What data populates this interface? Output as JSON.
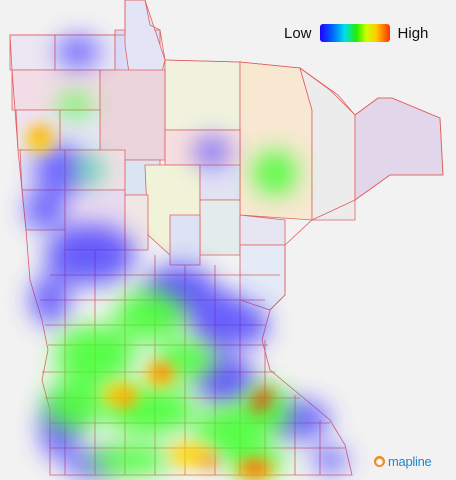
{
  "legend": {
    "low_label": "Low",
    "high_label": "High",
    "gradient_colors": [
      "#1f00ff",
      "#0066ff",
      "#00ddee",
      "#22ee00",
      "#ccff00",
      "#ffcc00",
      "#ff3300"
    ]
  },
  "brand": {
    "name": "mapline",
    "icon": "mapline-pin-icon",
    "color": "#1e88c8",
    "icon_color": "#f08a1c"
  },
  "map": {
    "region": "Minnesota counties",
    "border_color": "#e06060",
    "background_color": "#f2f2f2"
  }
}
